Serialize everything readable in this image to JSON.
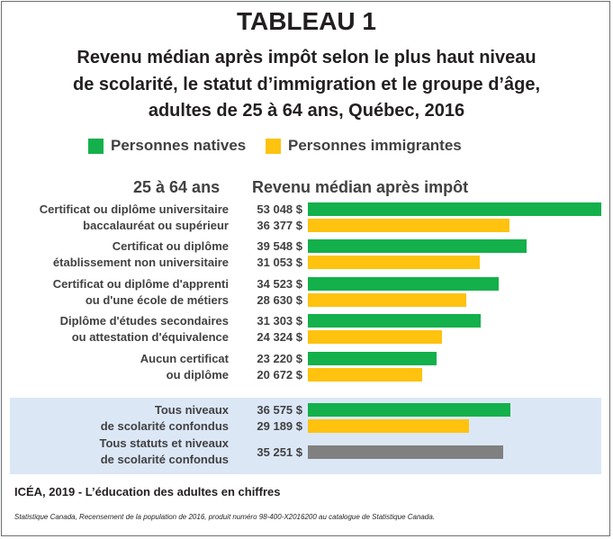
{
  "header": {
    "table_label": "TABLEAU 1",
    "subtitle_lines": [
      "Revenu médian après impôt selon le plus haut niveau",
      "de scolarité, le statut d’immigration et le groupe d’âge,",
      "adultes de 25 à 64 ans, Québec, 2016"
    ]
  },
  "legend": [
    {
      "label": "Personnes natives",
      "color": "#13b04b"
    },
    {
      "label": "Personnes immigrantes",
      "color": "#fec20f"
    }
  ],
  "column_headers": {
    "category": "25 à 64 ans",
    "value": "Revenu médian après impôt"
  },
  "chart_data": {
    "type": "bar",
    "orientation": "horizontal",
    "title": "Revenu médian après impôt selon le plus haut niveau de scolarité, le statut d’immigration et le groupe d’âge, adultes de 25 à 64 ans, Québec, 2016",
    "categories": [
      [
        "Certificat ou diplôme universitaire",
        "baccalauréat ou supérieur"
      ],
      [
        "Certificat ou diplôme",
        "établissement non universitaire"
      ],
      [
        "Certificat ou diplôme d'apprenti",
        "ou d'une école de métiers"
      ],
      [
        "Diplôme d'études secondaires",
        "ou attestation d'équivalence"
      ],
      [
        "Aucun certificat",
        "ou diplôme"
      ],
      [
        "Tous niveaux",
        "de scolarité confondus"
      ],
      [
        "Tous statuts et niveaux",
        "de scolarité confondus"
      ]
    ],
    "series": [
      {
        "name": "Personnes natives",
        "color": "#13b04b",
        "values": [
          53048,
          39548,
          34523,
          31303,
          23220,
          36575,
          null
        ],
        "labels": [
          "53 048 $",
          "39 548 $",
          "34 523 $",
          "31 303 $",
          "23 220 $",
          "36 575 $",
          null
        ]
      },
      {
        "name": "Personnes immigrantes",
        "color": "#fec20f",
        "values": [
          36377,
          31053,
          28630,
          24324,
          20672,
          29189,
          null
        ],
        "labels": [
          "36 377 $",
          "31 053 $",
          "28 630 $",
          "24 324 $",
          "20 672 $",
          "29 189 $",
          null
        ]
      },
      {
        "name": "",
        "color": "#808080",
        "values": [
          null,
          null,
          null,
          null,
          null,
          null,
          35251
        ],
        "labels": [
          null,
          null,
          null,
          null,
          null,
          null,
          "35 251 $"
        ]
      }
    ],
    "highlight_group_color": "#dbe7f5",
    "grid": false
  },
  "footer": {
    "source_bold": "ICÉA, 2019 - L’éducation des adultes en chiffres",
    "source_note": "Statistique Canada, Recensement de la population de 2016, produit numéro 98-400-X2016200 au catalogue de Statistique Canada."
  }
}
